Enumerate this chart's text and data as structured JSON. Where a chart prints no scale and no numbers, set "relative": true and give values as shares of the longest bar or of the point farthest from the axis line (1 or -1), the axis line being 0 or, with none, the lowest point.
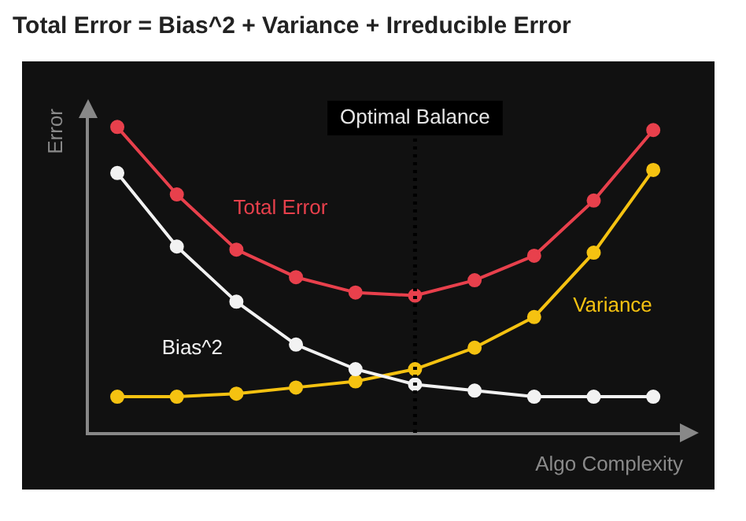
{
  "chart_data": {
    "type": "line",
    "title": "Total Error = Bias^2 + Variance + Irreducible Error",
    "xlabel": "Algo Complexity",
    "ylabel": "Error",
    "relative": true,
    "categories": [
      null,
      null,
      null,
      null,
      null,
      null,
      null,
      null,
      null,
      null
    ],
    "grid": false,
    "legend": false,
    "marker": "circle",
    "line_style": "solid",
    "series": [
      {
        "name": "Total Error",
        "color": "#e8404c",
        "values": [
          1,
          0.78,
          0.6,
          0.51,
          0.46,
          0.45,
          0.5,
          0.58,
          0.76,
          0.99
        ]
      },
      {
        "name": "Bias^2",
        "color": "#f2f2f2",
        "values": [
          0.85,
          0.61,
          0.43,
          0.29,
          0.21,
          0.16,
          0.14,
          0.12,
          0.12,
          0.12
        ]
      },
      {
        "name": "Variance",
        "color": "#f5c211",
        "values": [
          0.12,
          0.12,
          0.13,
          0.15,
          0.17,
          0.21,
          0.28,
          0.38,
          0.59,
          0.86
        ]
      }
    ],
    "ref_lines": [
      {
        "axis": "x",
        "label": "Optimal Balance",
        "color": "#000000",
        "line_style": "dotted"
      }
    ]
  }
}
